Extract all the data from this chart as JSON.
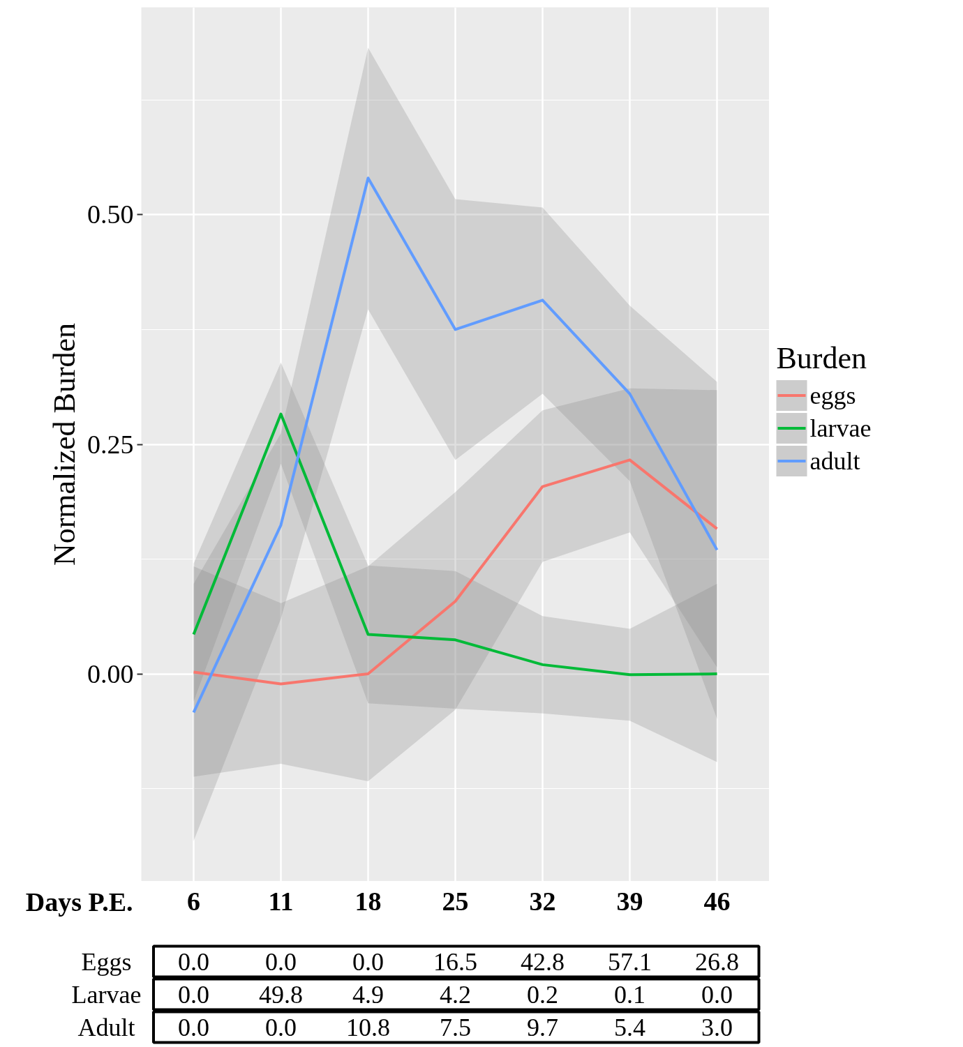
{
  "chart_data": [
    {
      "type": "line",
      "xlabel": "Days P.E.",
      "ylabel": "Normalized Burden",
      "legend_title": "Burden",
      "legend": "right",
      "grid": true,
      "categories": [
        "6",
        "11",
        "18",
        "25",
        "32",
        "39",
        "46"
      ],
      "ylim": [
        -0.226,
        0.726
      ],
      "yticks": [
        {
          "value": 0,
          "label": "0.00"
        },
        {
          "value": 0.25,
          "label": "0.25"
        },
        {
          "value": 0.5,
          "label": "0.50"
        }
      ],
      "series": [
        {
          "name": "eggs",
          "color": "#f8766d",
          "values": [
            0.002,
            -0.011,
            0.0,
            0.079,
            0.204,
            0.233,
            0.158
          ],
          "lower": [
            -0.112,
            -0.098,
            -0.117,
            -0.039,
            0.122,
            0.154,
            0.007
          ],
          "upper": [
            0.117,
            0.077,
            0.117,
            0.198,
            0.287,
            0.311,
            0.309
          ]
        },
        {
          "name": "larvae",
          "color": "#00ba38",
          "values": [
            0.043,
            0.283,
            0.043,
            0.037,
            0.01,
            -0.001,
            0.0
          ],
          "lower": [
            -0.03,
            0.229,
            -0.032,
            -0.038,
            -0.043,
            -0.051,
            -0.096
          ],
          "upper": [
            0.12,
            0.339,
            0.118,
            0.112,
            0.063,
            0.049,
            0.098
          ]
        },
        {
          "name": "adult",
          "color": "#619cff",
          "values": [
            -0.042,
            0.162,
            0.54,
            0.375,
            0.407,
            0.305,
            0.135
          ],
          "lower": [
            -0.182,
            0.06,
            0.397,
            0.233,
            0.305,
            0.21,
            -0.049
          ],
          "upper": [
            0.098,
            0.262,
            0.682,
            0.517,
            0.508,
            0.401,
            0.318
          ]
        }
      ]
    },
    {
      "type": "heatmap",
      "categories": [
        null,
        null,
        null,
        null,
        null,
        null,
        null
      ],
      "y_categories": [
        "Eggs",
        "Larvae",
        "Adult"
      ],
      "cells": [
        [
          0.0,
          0.0,
          0.0,
          16.5,
          42.8,
          57.1,
          26.8
        ],
        [
          0.0,
          49.8,
          4.9,
          4.2,
          0.2,
          0.1,
          0.0
        ],
        [
          0.0,
          0.0,
          10.8,
          7.5,
          9.7,
          5.4,
          3.0
        ]
      ],
      "cell_labels": [
        [
          "0.0",
          "0.0",
          "0.0",
          "16.5",
          "42.8",
          "57.1",
          "26.8"
        ],
        [
          "0.0",
          "49.8",
          "4.9",
          "4.2",
          "0.2",
          "0.1",
          "0.0"
        ],
        [
          "0.0",
          "0.0",
          "10.8",
          "7.5",
          "9.7",
          "5.4",
          "3.0"
        ]
      ]
    }
  ]
}
